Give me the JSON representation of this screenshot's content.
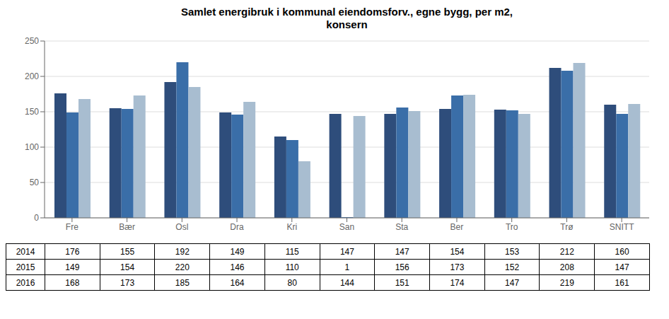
{
  "chart_data": {
    "type": "bar",
    "title": "Samlet energibruk i kommunal eiendomsforv., egne bygg, per m2,\nkonsern",
    "categories": [
      "Fre",
      "Bær",
      "Osl",
      "Dra",
      "Kri",
      "San",
      "Sta",
      "Ber",
      "Tro",
      "Trø",
      "SNITT"
    ],
    "series": [
      {
        "name": "2014",
        "color": "#2E4D7B",
        "values": [
          176,
          155,
          192,
          149,
          115,
          147,
          147,
          154,
          153,
          212,
          160
        ]
      },
      {
        "name": "2015",
        "color": "#3A6EA8",
        "values": [
          149,
          154,
          220,
          146,
          110,
          1,
          156,
          173,
          152,
          208,
          147
        ]
      },
      {
        "name": "2016",
        "color": "#A8BDD0",
        "values": [
          168,
          173,
          185,
          164,
          80,
          144,
          151,
          174,
          147,
          219,
          161
        ]
      }
    ],
    "ylim": [
      0,
      250
    ],
    "yticks": [
      0,
      50,
      100,
      150,
      200,
      250
    ],
    "grid": true
  }
}
